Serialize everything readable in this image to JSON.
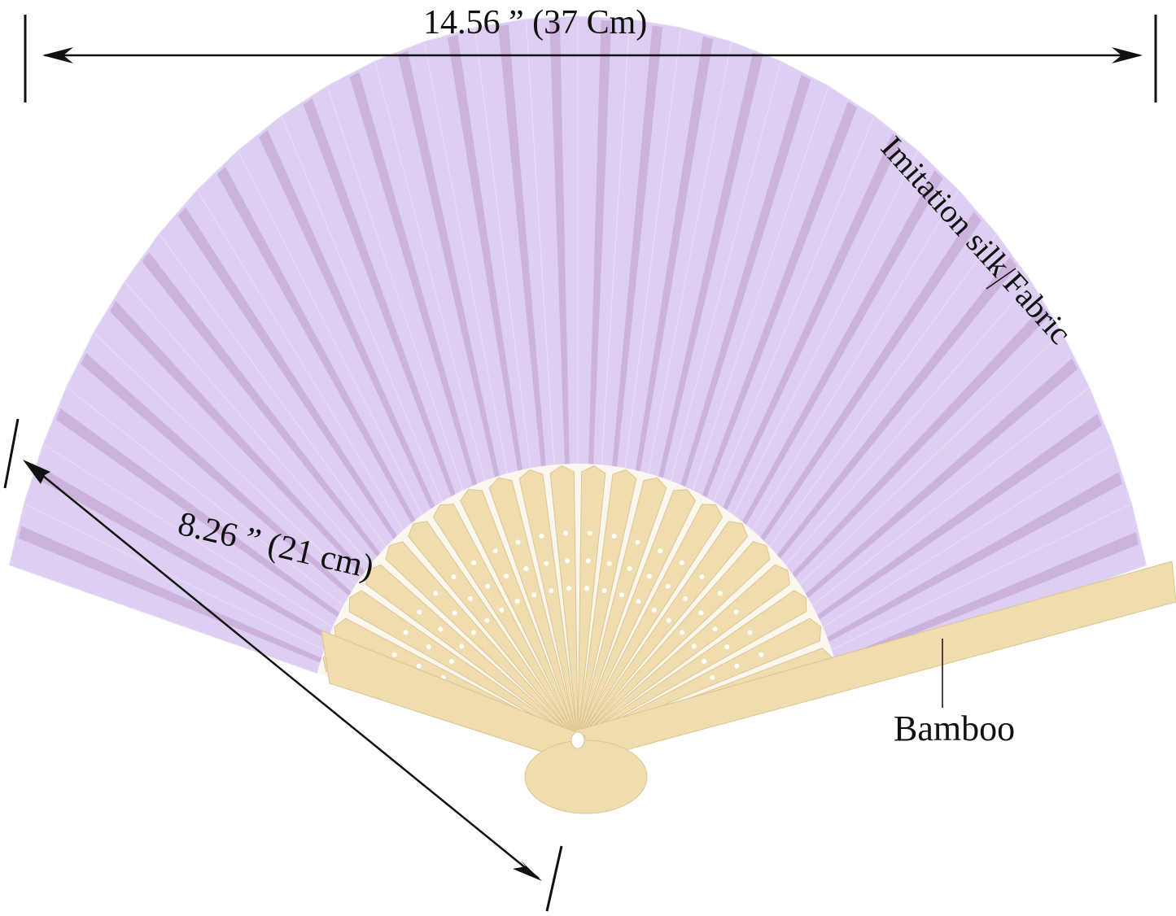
{
  "dimensions": {
    "width_label": "14.56 ”  (37 Cm)",
    "length_label": "8.26 ”  (21 cm)"
  },
  "callouts": {
    "fabric": "Imitation silk Fabric",
    "frame": "Bamboo"
  },
  "colors": {
    "fabric": "#dccff2",
    "fabric_rib": "#c7a9d4",
    "bamboo": "#efddb0",
    "bamboo_dark": "#dcc48e",
    "annotation": "#111111"
  },
  "fan": {
    "rib_count": 30
  }
}
